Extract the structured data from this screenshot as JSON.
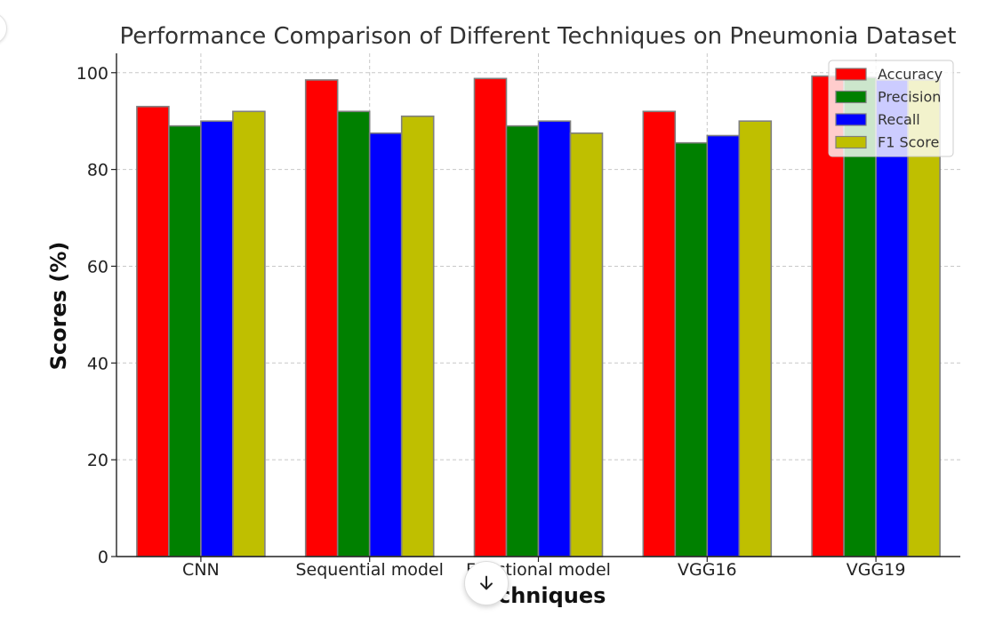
{
  "chart_data": {
    "type": "bar",
    "title": "Performance Comparison of Different Techniques on Pneumonia Dataset",
    "xlabel": "Techniques",
    "ylabel": "Scores (%)",
    "categories": [
      "CNN",
      "Sequential model",
      "Functional model",
      "VGG16",
      "VGG19"
    ],
    "series": [
      {
        "name": "Accuracy",
        "color": "#ff0000",
        "values": [
          93,
          98.5,
          98.8,
          92,
          99.3
        ]
      },
      {
        "name": "Precision",
        "color": "#008000",
        "values": [
          89,
          92,
          89,
          85.5,
          99
        ]
      },
      {
        "name": "Recall",
        "color": "#0000ff",
        "values": [
          90,
          87.5,
          90,
          87,
          98.5
        ]
      },
      {
        "name": "F1 Score",
        "color": "#bfbf00",
        "values": [
          92,
          91,
          87.5,
          90,
          98.5
        ]
      }
    ],
    "ylim": [
      0,
      104
    ],
    "yticks": [
      "0",
      "20",
      "40",
      "60",
      "80",
      "100"
    ],
    "grid": true,
    "legend_position": "top-right"
  },
  "ui": {
    "scroll_button_icon": "arrow-down-icon"
  }
}
